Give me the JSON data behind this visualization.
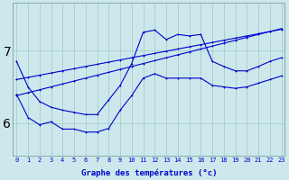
{
  "xlabel": "Graphe des températures (°c)",
  "background_color": "#cce8ec",
  "line_color": "#0000cc",
  "grid_color": "#aacccc",
  "x_ticks": [
    0,
    1,
    2,
    3,
    4,
    5,
    6,
    7,
    8,
    9,
    10,
    11,
    12,
    13,
    14,
    15,
    16,
    17,
    18,
    19,
    20,
    21,
    22,
    23
  ],
  "y_ticks": [
    6,
    7
  ],
  "ylim": [
    5.55,
    7.65
  ],
  "xlim": [
    -0.3,
    23.3
  ],
  "curve_wavy": [
    6.85,
    6.5,
    6.3,
    6.22,
    6.18,
    6.15,
    6.12,
    6.12,
    6.32,
    6.52,
    6.82,
    7.25,
    7.28,
    7.15,
    7.22,
    7.2,
    7.22,
    6.85,
    6.78,
    6.72,
    6.72,
    6.78,
    6.85,
    6.9
  ],
  "curve_low_jagged": [
    6.4,
    6.08,
    5.98,
    6.02,
    5.92,
    5.92,
    5.88,
    5.88,
    5.93,
    6.18,
    6.38,
    6.62,
    6.68,
    6.62,
    6.62,
    6.62,
    6.62,
    6.52,
    6.5,
    6.48,
    6.5,
    6.55,
    6.6,
    6.65
  ],
  "line_upper": [
    6.6,
    6.63,
    6.66,
    6.69,
    6.72,
    6.75,
    6.78,
    6.81,
    6.84,
    6.87,
    6.9,
    6.93,
    6.96,
    6.99,
    7.02,
    7.05,
    7.08,
    7.11,
    7.14,
    7.17,
    7.2,
    7.23,
    7.26,
    7.29
  ],
  "line_lower": [
    6.38,
    6.42,
    6.46,
    6.5,
    6.54,
    6.58,
    6.62,
    6.66,
    6.7,
    6.74,
    6.78,
    6.82,
    6.86,
    6.9,
    6.94,
    6.98,
    7.02,
    7.06,
    7.1,
    7.14,
    7.18,
    7.22,
    7.26,
    7.3
  ]
}
